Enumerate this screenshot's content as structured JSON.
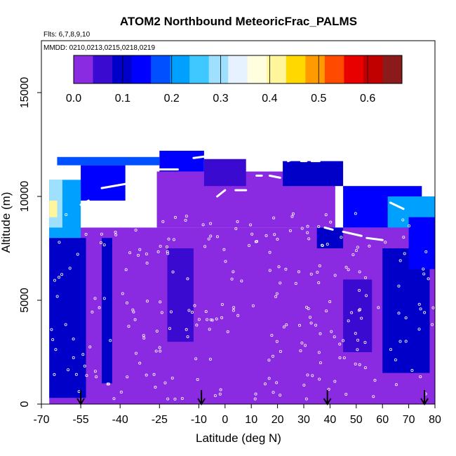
{
  "chart_data": {
    "type": "heatmap",
    "title": "ATOM2 Northbound MeteoricFrac_PALMS",
    "flights_label": "Flts: 6,7,8,9,10",
    "dates_label": "MMDD: 0210,0213,0215,0218,0219",
    "xlabel": "Latitude (deg N)",
    "ylabel": "Altitude (m)",
    "x_ticks": [
      "-70",
      "-55",
      "-40",
      "-25",
      "-10",
      "0",
      "10",
      "20",
      "30",
      "40",
      "50",
      "60",
      "70",
      "80"
    ],
    "x_tick_values": [
      -70,
      -55,
      -40,
      -25,
      -10,
      0,
      10,
      20,
      30,
      40,
      50,
      60,
      70,
      80
    ],
    "y_ticks": [
      "0",
      "5000",
      "10000",
      "15000"
    ],
    "y_tick_values": [
      0,
      5000,
      10000,
      15000
    ],
    "xlim": [
      -70,
      80
    ],
    "ylim": [
      0,
      17500
    ],
    "colorbar": {
      "ticks": [
        "0.0",
        "0.1",
        "0.2",
        "0.3",
        "0.4",
        "0.5",
        "0.6"
      ],
      "tick_values": [
        0.0,
        0.1,
        0.2,
        0.3,
        0.4,
        0.5,
        0.6
      ],
      "range": [
        0,
        0.67
      ],
      "colors": [
        "#8a2be2",
        "#3a0ad0",
        "#0000c8",
        "#0000ff",
        "#0050ff",
        "#00a0ff",
        "#3fc8ff",
        "#a0e0ff",
        "#e6f2ff",
        "#ffffe0",
        "#fff59a",
        "#ffd800",
        "#ff9a00",
        "#ff4a00",
        "#e80000",
        "#c00000",
        "#8b1a1a"
      ]
    },
    "profile_arrow_latitudes": [
      -55,
      -9,
      39,
      76
    ],
    "flight_track_segments": [
      {
        "lat": [
          -55,
          -52
        ],
        "alt": [
          9600,
          9800
        ]
      },
      {
        "lat": [
          -47,
          -38
        ],
        "alt": [
          10400,
          10600
        ]
      },
      {
        "lat": [
          -28,
          -18
        ],
        "alt": [
          11300,
          11300
        ]
      },
      {
        "lat": [
          -12,
          -6
        ],
        "alt": [
          11850,
          11950
        ]
      },
      {
        "lat": [
          -3,
          0
        ],
        "alt": [
          10000,
          10300
        ]
      },
      {
        "lat": [
          4,
          8
        ],
        "alt": [
          10300,
          10300
        ]
      },
      {
        "lat": [
          12,
          14
        ],
        "alt": [
          11000,
          11000
        ]
      },
      {
        "lat": [
          17,
          21
        ],
        "alt": [
          11000,
          10900
        ]
      },
      {
        "lat": [
          24,
          26
        ],
        "alt": [
          11700,
          11800
        ]
      },
      {
        "lat": [
          29,
          31
        ],
        "alt": [
          11700,
          11700
        ]
      },
      {
        "lat": [
          33,
          36
        ],
        "alt": [
          11700,
          11700
        ]
      },
      {
        "lat": [
          38,
          41
        ],
        "alt": [
          8500,
          8400
        ]
      },
      {
        "lat": [
          45,
          52
        ],
        "alt": [
          8300,
          8100
        ]
      },
      {
        "lat": [
          54,
          60
        ],
        "alt": [
          8000,
          7900
        ]
      },
      {
        "lat": [
          63,
          68
        ],
        "alt": [
          9700,
          9400
        ]
      }
    ],
    "regions": [
      {
        "lat": [
          -67,
          80
        ],
        "alt": [
          0,
          8500
        ],
        "value": 0.02
      },
      {
        "lat": [
          -26,
          42
        ],
        "alt": [
          8500,
          11200
        ],
        "value": 0.02
      },
      {
        "lat": [
          -67,
          -53
        ],
        "alt": [
          300,
          8000
        ],
        "value": 0.1
      },
      {
        "lat": [
          -47,
          -43
        ],
        "alt": [
          1000,
          8000
        ],
        "value": 0.08
      },
      {
        "lat": [
          -22,
          -12
        ],
        "alt": [
          3000,
          7500
        ],
        "value": 0.06
      },
      {
        "lat": [
          60,
          78
        ],
        "alt": [
          1500,
          7500
        ],
        "value": 0.1
      },
      {
        "lat": [
          45,
          56
        ],
        "alt": [
          2500,
          6000
        ],
        "value": 0.07
      },
      {
        "lat": [
          -67,
          -55
        ],
        "alt": [
          8000,
          10800
        ],
        "value": 0.2
      },
      {
        "lat": [
          -67,
          -62
        ],
        "alt": [
          8500,
          10800
        ],
        "value": 0.3
      },
      {
        "lat": [
          -67,
          -64
        ],
        "alt": [
          9000,
          9800
        ],
        "value": 0.42
      },
      {
        "lat": [
          -55,
          -38
        ],
        "alt": [
          9800,
          11500
        ],
        "value": 0.15
      },
      {
        "lat": [
          -64,
          -25
        ],
        "alt": [
          11500,
          11900
        ],
        "value": 0.18
      },
      {
        "lat": [
          -25,
          -8
        ],
        "alt": [
          11200,
          12200
        ],
        "value": 0.12
      },
      {
        "lat": [
          -8,
          8
        ],
        "alt": [
          10500,
          11800
        ],
        "value": 0.05
      },
      {
        "lat": [
          22,
          45
        ],
        "alt": [
          10500,
          11700
        ],
        "value": 0.1
      },
      {
        "lat": [
          45,
          75
        ],
        "alt": [
          8500,
          10500
        ],
        "value": 0.14
      },
      {
        "lat": [
          62,
          80
        ],
        "alt": [
          8500,
          10000
        ],
        "value": 0.22
      },
      {
        "lat": [
          70,
          80
        ],
        "alt": [
          6500,
          9000
        ],
        "value": 0.14
      },
      {
        "lat": [
          35,
          45
        ],
        "alt": [
          7500,
          8500
        ],
        "value": 0.08
      }
    ],
    "grid": false
  }
}
